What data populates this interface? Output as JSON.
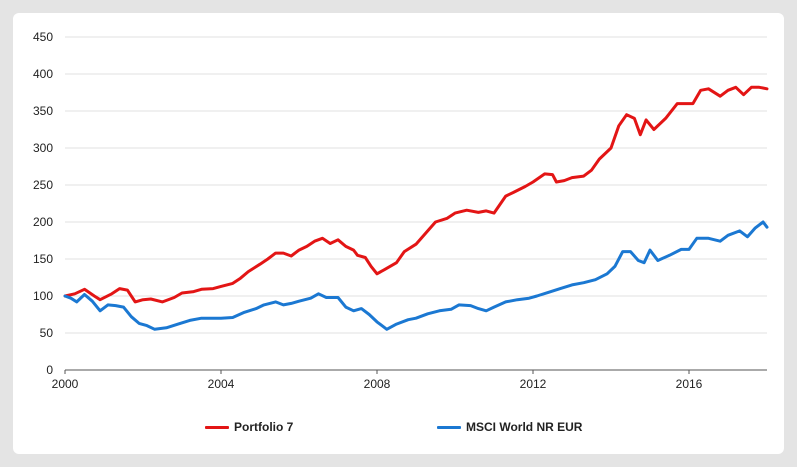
{
  "chart_data": {
    "type": "line",
    "title": "",
    "xlabel": "",
    "ylabel": "",
    "xlim": [
      2000,
      2018
    ],
    "ylim": [
      0,
      450
    ],
    "xticks": [
      2000,
      2004,
      2008,
      2012,
      2016
    ],
    "yticks": [
      0,
      50,
      100,
      150,
      200,
      250,
      300,
      350,
      400,
      450
    ],
    "grid": "horizontal",
    "legend": "bottom",
    "series": [
      {
        "name": "Portfolio 7",
        "color": "#e31515",
        "points": [
          [
            2000.0,
            100
          ],
          [
            2000.25,
            103
          ],
          [
            2000.5,
            109
          ],
          [
            2000.75,
            100
          ],
          [
            2000.9,
            95
          ],
          [
            2001.2,
            103
          ],
          [
            2001.4,
            110
          ],
          [
            2001.6,
            108
          ],
          [
            2001.8,
            92
          ],
          [
            2002.0,
            95
          ],
          [
            2002.2,
            96
          ],
          [
            2002.5,
            92
          ],
          [
            2002.8,
            98
          ],
          [
            2003.0,
            104
          ],
          [
            2003.3,
            106
          ],
          [
            2003.5,
            109
          ],
          [
            2003.8,
            110
          ],
          [
            2004.0,
            113
          ],
          [
            2004.3,
            117
          ],
          [
            2004.5,
            124
          ],
          [
            2004.7,
            133
          ],
          [
            2005.0,
            143
          ],
          [
            2005.2,
            150
          ],
          [
            2005.4,
            158
          ],
          [
            2005.6,
            158
          ],
          [
            2005.8,
            154
          ],
          [
            2006.0,
            162
          ],
          [
            2006.2,
            167
          ],
          [
            2006.4,
            174
          ],
          [
            2006.6,
            178
          ],
          [
            2006.8,
            171
          ],
          [
            2007.0,
            176
          ],
          [
            2007.2,
            167
          ],
          [
            2007.4,
            162
          ],
          [
            2007.5,
            155
          ],
          [
            2007.7,
            152
          ],
          [
            2007.85,
            140
          ],
          [
            2008.0,
            130
          ],
          [
            2008.2,
            136
          ],
          [
            2008.5,
            145
          ],
          [
            2008.7,
            160
          ],
          [
            2009.0,
            170
          ],
          [
            2009.3,
            188
          ],
          [
            2009.5,
            200
          ],
          [
            2009.8,
            205
          ],
          [
            2010.0,
            212
          ],
          [
            2010.3,
            216
          ],
          [
            2010.6,
            213
          ],
          [
            2010.8,
            215
          ],
          [
            2011.0,
            212
          ],
          [
            2011.3,
            235
          ],
          [
            2011.5,
            240
          ],
          [
            2011.8,
            248
          ],
          [
            2012.0,
            254
          ],
          [
            2012.3,
            265
          ],
          [
            2012.5,
            264
          ],
          [
            2012.6,
            254
          ],
          [
            2012.8,
            256
          ],
          [
            2013.0,
            260
          ],
          [
            2013.3,
            262
          ],
          [
            2013.5,
            270
          ],
          [
            2013.7,
            285
          ],
          [
            2014.0,
            300
          ],
          [
            2014.2,
            330
          ],
          [
            2014.4,
            345
          ],
          [
            2014.6,
            340
          ],
          [
            2014.75,
            318
          ],
          [
            2014.9,
            338
          ],
          [
            2015.1,
            325
          ],
          [
            2015.4,
            340
          ],
          [
            2015.7,
            360
          ],
          [
            2015.9,
            360
          ],
          [
            2016.1,
            360
          ],
          [
            2016.3,
            378
          ],
          [
            2016.5,
            380
          ],
          [
            2016.8,
            370
          ],
          [
            2017.0,
            378
          ],
          [
            2017.2,
            382
          ],
          [
            2017.4,
            372
          ],
          [
            2017.6,
            382
          ],
          [
            2017.8,
            382
          ],
          [
            2018.0,
            380
          ]
        ]
      },
      {
        "name": "MSCI World NR EUR",
        "color": "#1b78d2",
        "points": [
          [
            2000.0,
            100
          ],
          [
            2000.15,
            97
          ],
          [
            2000.3,
            92
          ],
          [
            2000.5,
            102
          ],
          [
            2000.7,
            93
          ],
          [
            2000.9,
            80
          ],
          [
            2001.1,
            88
          ],
          [
            2001.3,
            87
          ],
          [
            2001.5,
            85
          ],
          [
            2001.7,
            72
          ],
          [
            2001.9,
            63
          ],
          [
            2002.1,
            60
          ],
          [
            2002.3,
            55
          ],
          [
            2002.6,
            57
          ],
          [
            2002.9,
            62
          ],
          [
            2003.2,
            67
          ],
          [
            2003.5,
            70
          ],
          [
            2003.8,
            70
          ],
          [
            2004.0,
            70
          ],
          [
            2004.3,
            71
          ],
          [
            2004.6,
            78
          ],
          [
            2004.9,
            83
          ],
          [
            2005.1,
            88
          ],
          [
            2005.4,
            92
          ],
          [
            2005.6,
            88
          ],
          [
            2005.8,
            90
          ],
          [
            2006.0,
            93
          ],
          [
            2006.3,
            97
          ],
          [
            2006.5,
            103
          ],
          [
            2006.7,
            98
          ],
          [
            2007.0,
            98
          ],
          [
            2007.2,
            85
          ],
          [
            2007.4,
            80
          ],
          [
            2007.6,
            83
          ],
          [
            2007.8,
            75
          ],
          [
            2008.0,
            65
          ],
          [
            2008.25,
            55
          ],
          [
            2008.5,
            62
          ],
          [
            2008.8,
            68
          ],
          [
            2009.0,
            70
          ],
          [
            2009.3,
            76
          ],
          [
            2009.6,
            80
          ],
          [
            2009.9,
            82
          ],
          [
            2010.1,
            88
          ],
          [
            2010.4,
            87
          ],
          [
            2010.6,
            83
          ],
          [
            2010.8,
            80
          ],
          [
            2011.0,
            85
          ],
          [
            2011.3,
            92
          ],
          [
            2011.6,
            95
          ],
          [
            2011.9,
            97
          ],
          [
            2012.1,
            100
          ],
          [
            2012.4,
            105
          ],
          [
            2012.7,
            110
          ],
          [
            2013.0,
            115
          ],
          [
            2013.3,
            118
          ],
          [
            2013.6,
            122
          ],
          [
            2013.9,
            130
          ],
          [
            2014.1,
            140
          ],
          [
            2014.3,
            160
          ],
          [
            2014.5,
            160
          ],
          [
            2014.7,
            148
          ],
          [
            2014.85,
            145
          ],
          [
            2015.0,
            162
          ],
          [
            2015.2,
            148
          ],
          [
            2015.5,
            155
          ],
          [
            2015.8,
            163
          ],
          [
            2016.0,
            163
          ],
          [
            2016.2,
            178
          ],
          [
            2016.5,
            178
          ],
          [
            2016.8,
            174
          ],
          [
            2017.0,
            182
          ],
          [
            2017.3,
            188
          ],
          [
            2017.5,
            180
          ],
          [
            2017.7,
            192
          ],
          [
            2017.9,
            200
          ],
          [
            2018.0,
            193
          ]
        ]
      }
    ]
  }
}
